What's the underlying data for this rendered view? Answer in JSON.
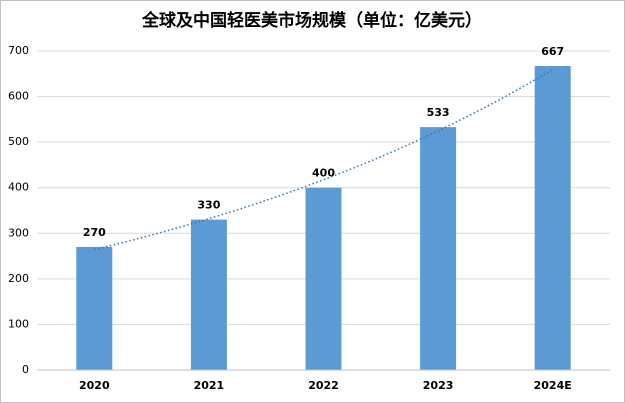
{
  "chart_data": {
    "type": "bar",
    "title": "全球及中国轻医美市场规模（单位：亿美元）",
    "categories": [
      "2020",
      "2021",
      "2022",
      "2023",
      "2024E"
    ],
    "values": [
      270,
      330,
      400,
      533,
      667
    ],
    "color": "#5b9bd5",
    "ylim": [
      0,
      700
    ],
    "yticks": [
      0,
      100,
      200,
      300,
      400,
      500,
      600,
      700
    ],
    "grid": true,
    "trendline": {
      "type": "exponential",
      "color": "#2e75b6"
    }
  }
}
